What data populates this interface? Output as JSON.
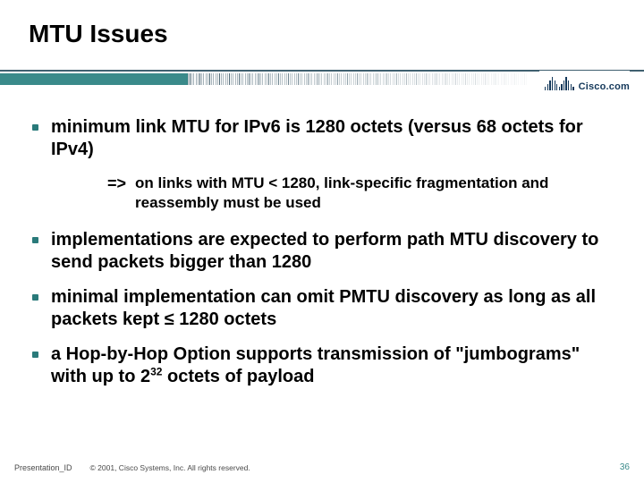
{
  "title": "MTU Issues",
  "brand": {
    "name": "Cisco.com",
    "color": "#14385a"
  },
  "divider": {
    "teal": "#3a8a8a",
    "line": "#406070"
  },
  "bullets": [
    {
      "text": "minimum link MTU for IPv6 is 1280 octets (versus 68 octets for IPv4)",
      "sub": {
        "arrow": "=>",
        "text": "on links with MTU < 1280, link-specific fragmentation and reassembly must be used"
      }
    },
    {
      "text": "implementations are expected to perform path MTU discovery to send packets bigger than 1280"
    },
    {
      "text": "minimal implementation can omit PMTU discovery as long as all packets kept ≤ 1280 octets"
    },
    {
      "text_html": "a Hop-by-Hop Option supports transmission of \"jumbograms\" with up to 2<sup>32</sup> octets of payload"
    }
  ],
  "footer": {
    "presentation_id": "Presentation_ID",
    "copyright": "© 2001, Cisco Systems, Inc. All rights reserved.",
    "page_number": "36"
  },
  "style": {
    "title_fontsize": 28,
    "bullet_fontsize": 20,
    "sub_fontsize": 17,
    "bullet_color": "#2a7a7a",
    "background": "#ffffff",
    "logo_bar_heights": [
      4,
      7,
      11,
      15,
      11,
      7,
      4,
      7,
      11,
      15,
      11,
      7,
      4
    ]
  }
}
